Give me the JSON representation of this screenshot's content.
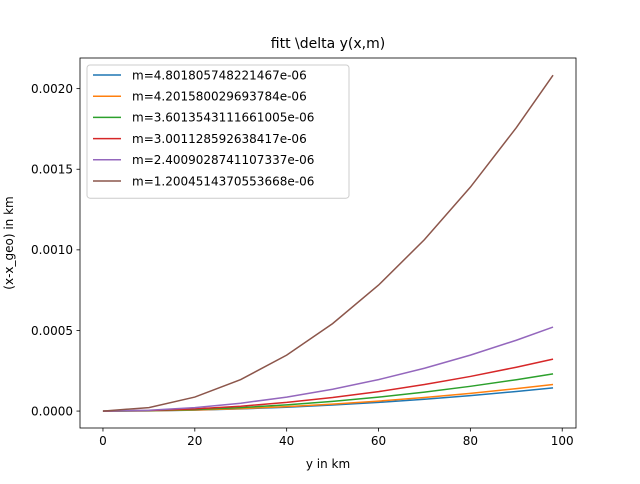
{
  "chart_data": {
    "type": "line",
    "title": "fitt \\delta y(x,m)",
    "xlabel": "y in km",
    "ylabel": "(x-x_geo) in km",
    "xlim": [
      -5,
      103
    ],
    "ylim": [
      -0.000105,
      0.00219
    ],
    "xticks": [
      0,
      20,
      40,
      60,
      80,
      100
    ],
    "xtick_labels": [
      "0",
      "20",
      "40",
      "60",
      "80",
      "100"
    ],
    "yticks": [
      0,
      0.0005,
      0.001,
      0.0015,
      0.002
    ],
    "ytick_labels": [
      "0.0000",
      "0.0005",
      "0.0010",
      "0.0015",
      "0.0020"
    ],
    "grid": false,
    "legend_position": "upper left",
    "x": [
      0,
      10,
      20,
      30,
      40,
      50,
      60,
      70,
      80,
      90,
      98
    ],
    "series": [
      {
        "name": "m=4.801805748221467e-06",
        "color": "#1f77b4",
        "values": [
          0,
          1.5e-06,
          6e-06,
          1.35e-05,
          2.4e-05,
          3.75e-05,
          5.4e-05,
          7.35e-05,
          9.6e-05,
          0.0001215,
          0.0001441
        ]
      },
      {
        "name": "m=4.201580029693784e-06",
        "color": "#ff7f0e",
        "values": [
          0,
          1.7e-06,
          6.9e-06,
          1.54e-05,
          2.74e-05,
          4.28e-05,
          6.17e-05,
          8.4e-05,
          0.0001097,
          0.0001389,
          0.0001646
        ]
      },
      {
        "name": "m=3.6013543111661005e-06",
        "color": "#2ca02c",
        "values": [
          0,
          2.4e-06,
          9.6e-06,
          2.16e-05,
          3.84e-05,
          6e-05,
          8.64e-05,
          0.0001176,
          0.0001536,
          0.0001944,
          0.0002305
        ]
      },
      {
        "name": "m=3.001128592638417e-06",
        "color": "#d62728",
        "values": [
          0,
          3.4e-06,
          1.34e-05,
          3.02e-05,
          5.37e-05,
          8.39e-05,
          0.0001208,
          0.0001645,
          0.0002148,
          0.0002719,
          0.0003223
        ]
      },
      {
        "name": "m=2.4009028741107337e-06",
        "color": "#9467bd",
        "values": [
          0,
          5.4e-06,
          2.17e-05,
          4.88e-05,
          8.68e-05,
          0.0001356,
          0.0001953,
          0.0002658,
          0.0003472,
          0.0004394,
          0.0005209
        ]
      },
      {
        "name": "m=1.2004514370553668e-06",
        "color": "#8c564b",
        "values": [
          0,
          2.17e-05,
          8.68e-05,
          0.0001953,
          0.0003472,
          0.0005425,
          0.0007812,
          0.0010633,
          0.0013888,
          0.0017577,
          0.0020835
        ]
      }
    ]
  }
}
